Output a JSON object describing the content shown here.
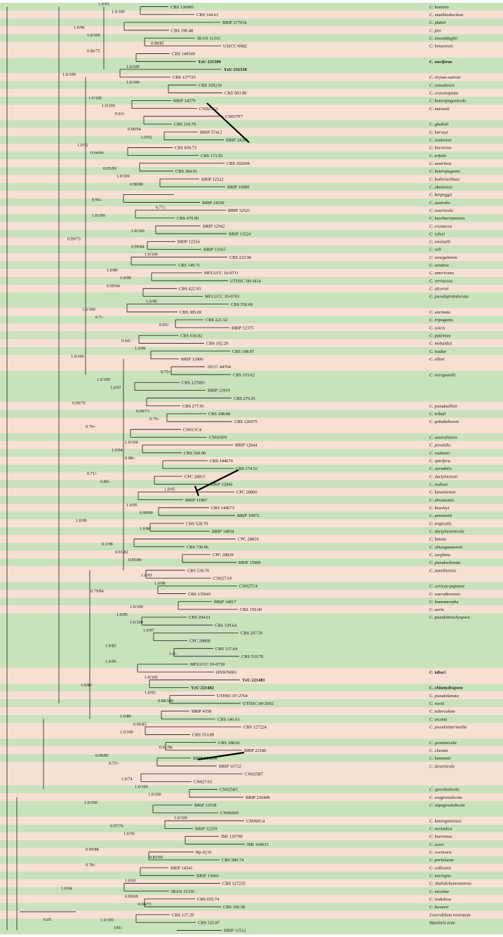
{
  "tree": {
    "scale_label": "0.05",
    "taxa": [
      {
        "strain": "CBS 136985",
        "species": "C. hominis"
      },
      {
        "strain": "CBS 144.63",
        "species": "C. muehlenbeckiae"
      },
      {
        "strain": "BRIP 27703b",
        "species": "C. platzii"
      },
      {
        "strain": "CBS 190.48",
        "species": "C. pisi"
      },
      {
        "strain": "IRAN 3131C",
        "species": "C. mosaddeghii"
      },
      {
        "strain": "USJCC-0082",
        "species": "C. lonarensis"
      },
      {
        "strain": "CBS 140569",
        "species": ""
      },
      {
        "strain": "YzU 231509",
        "species": "C. nuciferae",
        "bold": true
      },
      {
        "strain": "YzU 231510",
        "species": "",
        "bold": true
      },
      {
        "strain": "CBS 127725",
        "species": "C. oryzae-sativae"
      },
      {
        "strain": "CBS 109239",
        "species": "C. canadensis"
      },
      {
        "strain": "CBS 503.90",
        "species": "C. crassiseptata"
      },
      {
        "strain": "BRIP 14579",
        "species": "C. heteropogonicola"
      },
      {
        "strain": "CN021G3",
        "species": "C. marasiti"
      },
      {
        "strain": "CN037F7",
        "species": ""
      },
      {
        "strain": "CBS 210.79",
        "species": "C. gladioli"
      },
      {
        "strain": "BRIP 57412",
        "species": "C. harveyi"
      },
      {
        "strain": "BRIP 24261",
        "species": "C. coatesiae"
      },
      {
        "strain": "CBS 859.73",
        "species": "C. borreriae"
      },
      {
        "strain": "CBS 173.55",
        "species": "C. trifolii"
      },
      {
        "strain": "CBS 102694",
        "species": "C. austriaca"
      },
      {
        "strain": "CBS 284.91",
        "species": "C. heteropogonis"
      },
      {
        "strain": "BRIP 12522",
        "species": "C. bothriochloae"
      },
      {
        "strain": "BRIP 16080",
        "species": "C. akaiiensis"
      },
      {
        "strain": "",
        "species": "C. kenpeggii"
      },
      {
        "strain": "BRIP 14530",
        "species": "C. australis"
      },
      {
        "strain": "BRIP 12521",
        "species": "C. ovariicola"
      },
      {
        "strain": "CBS 470.90",
        "species": "C. beerburrumensis"
      },
      {
        "strain": "BRIP 12942",
        "species": "C. crustacea"
      },
      {
        "strain": "BRIP 13524",
        "species": "C. ryleyi"
      },
      {
        "strain": "BRIP 12554",
        "species": "C. ravenelii"
      },
      {
        "strain": "BRIP 13165",
        "species": "C. soli"
      },
      {
        "strain": "CBS 222.96",
        "species": "C. senegalensis"
      },
      {
        "strain": "CBS 149.71",
        "species": "C. asiatica"
      },
      {
        "strain": "MFLUCC 10-0711",
        "species": "C. americana"
      },
      {
        "strain": "UTHSC 08-3414",
        "species": "C. verrucosa"
      },
      {
        "strain": "CBS 422.93",
        "species": "C. alcornii"
      },
      {
        "strain": "MFLUCC 10-0703",
        "species": "C. pseudoprotuberata"
      },
      {
        "strain": "CBS 550.69",
        "species": ""
      },
      {
        "strain": "CBS 385.69",
        "species": "C. uncinata"
      },
      {
        "strain": "CBS 221.52",
        "species": "C. tripogonis"
      },
      {
        "strain": "BRIP 12375",
        "species": "C. coicis"
      },
      {
        "strain": "CBS 630.82",
        "species": "C. pateneae"
      },
      {
        "strain": "CBS 192.29",
        "species": "C. mebaldsii"
      },
      {
        "strain": "CBS 198.87",
        "species": "C. tsudae"
      },
      {
        "strain": "BRIP 12900",
        "species": "C. ellisii"
      },
      {
        "strain": "ATCC 44764",
        "species": ""
      },
      {
        "strain": "CBS 193.62",
        "species": "C. neergaardii"
      },
      {
        "strain": "CBS 127083",
        "species": ""
      },
      {
        "strain": "BRIP 12919",
        "species": ""
      },
      {
        "strain": "CBS 276.91",
        "species": ""
      },
      {
        "strain": "CBS 277.91",
        "species": "C. pseudoellisii"
      },
      {
        "strain": "CBS 298.80",
        "species": "C. tribuli"
      },
      {
        "strain": "CBS 126975",
        "species": "C. gobabebensis"
      },
      {
        "strain": "CN013C4",
        "species": ""
      },
      {
        "strain": "CN010F9",
        "species": "C. australiensis"
      },
      {
        "strain": "BRIP 12044",
        "species": "C. perotidis"
      },
      {
        "strain": "CBS 350.90",
        "species": "C. rouhanii"
      },
      {
        "strain": "CBS 144674",
        "species": "C. spicifera"
      },
      {
        "strain": "CBS 274.52",
        "species": "C. variabilis"
      },
      {
        "strain": "CPC 28815",
        "species": "C. dactyloctenii"
      },
      {
        "strain": "BRIP 12846",
        "species": "C. nodosa"
      },
      {
        "strain": "CPC 28800",
        "species": "C. hawaiiensis"
      },
      {
        "strain": "BRIP 11987",
        "species": "C. ahvazensis"
      },
      {
        "strain": "CBS 144673",
        "species": "C. beasleyi"
      },
      {
        "strain": "BRIP 10972",
        "species": "C. pennisetii"
      },
      {
        "strain": "CBS 528.70",
        "species": "C. tropicalis"
      },
      {
        "strain": "BRIP 14834",
        "species": "C. dactyloctenicola"
      },
      {
        "strain": "CPC 28810",
        "species": "C. lunata"
      },
      {
        "strain": "CBS 730.96",
        "species": "C. chiangmaiensis"
      },
      {
        "strain": "CPC 28829",
        "species": "C. sorghina"
      },
      {
        "strain": "BRIP 15900",
        "species": "C. pseudoclavata"
      },
      {
        "strain": "CBS 539.70",
        "species": "C. namibiensis"
      },
      {
        "strain": "CN027A9",
        "species": ""
      },
      {
        "strain": "CN027C4",
        "species": "C. caricae-papayae"
      },
      {
        "strain": "CBS 135941",
        "species": "C. warraberensis"
      },
      {
        "strain": "BRIP 14817",
        "species": "C. homomorpha"
      },
      {
        "strain": "CBS 156.60",
        "species": "C. aeria"
      },
      {
        "strain": "CBS 294.61",
        "species": "C. pseudobrachyspora"
      },
      {
        "strain": "CBS 339.64",
        "species": ""
      },
      {
        "strain": "CBS 207.59",
        "species": ""
      },
      {
        "strain": "CPC 28808",
        "species": ""
      },
      {
        "strain": "CBS 337.64",
        "species": ""
      },
      {
        "strain": "CBS 533.70",
        "species": ""
      },
      {
        "strain": "MFLUCC 10-0739",
        "species": ""
      },
      {
        "strain": "HNWN001",
        "species": "C. tabaci",
        "boldSpecies": true
      },
      {
        "strain": "YzU 221481",
        "species": "",
        "bold": true
      },
      {
        "strain": "YzU 221482",
        "species": "C. chlamydospora",
        "bold": true
      },
      {
        "strain": "UTHSC 07-2764",
        "species": "C. pseudolunata"
      },
      {
        "strain": "UTHSC 09-2092",
        "species": "C. reesii"
      },
      {
        "strain": "BRIP 4358",
        "species": "C. tuberculata"
      },
      {
        "strain": "CBS 146.63",
        "species": "C. arcana"
      },
      {
        "strain": "CBS 127224",
        "species": "C. pseudointermedia"
      },
      {
        "strain": "CBS 553.89",
        "species": ""
      },
      {
        "strain": "CBS 188.61",
        "species": "C. graminicola"
      },
      {
        "strain": "BRIP 23186",
        "species": "C. clavata"
      },
      {
        "strain": "BRIP 61680b",
        "species": "C. bannonii"
      },
      {
        "strain": "BRIP 16732",
        "species": "C. deserticola"
      },
      {
        "strain": "CN025B7",
        "species": ""
      },
      {
        "strain": "CN027A5",
        "species": ""
      },
      {
        "strain": "CN025B5",
        "species": "C. sporobolicola"
      },
      {
        "strain": "BRIP 23040b",
        "species": "C. eragrostidicola"
      },
      {
        "strain": "BRIP 12538",
        "species": "C. stipagrostidicola"
      },
      {
        "strain": "CN060H5",
        "species": ""
      },
      {
        "strain": "CN060G4",
        "species": "C. lamingtonensis"
      },
      {
        "strain": "BRIP 12259",
        "species": "C. neoindica"
      },
      {
        "strain": "IMI 129790",
        "species": "C. boeremae"
      },
      {
        "strain": "IMI 164633",
        "species": "C. zeavi"
      },
      {
        "strain": "Bp-Zj 01",
        "species": "C. coctivora"
      },
      {
        "strain": "CBS 580.74",
        "species": "C. portulacae"
      },
      {
        "strain": "BRIP 14541",
        "species": "C. colbranii"
      },
      {
        "strain": "BRIP 13066",
        "species": "C. micropus"
      },
      {
        "strain": "CBS 127235",
        "species": "C. shahidchamranensis"
      },
      {
        "strain": "IRAN 3133C",
        "species": "C. nicotiae"
      },
      {
        "strain": "CBS 655.74",
        "species": "C. nodulosa"
      },
      {
        "strain": "CBS 160.58",
        "species": "C. kusanoi"
      },
      {
        "strain": "CBS 137.29",
        "species": "Exserohilum rostratum"
      },
      {
        "strain": "CBS 325.87",
        "species": "Bipolaris zeae"
      },
      {
        "strain": "BRIP 11512",
        "species": ""
      }
    ],
    "supports": [
      "1.0/93",
      "1.0/100",
      "1.0/96",
      "1.0/100",
      "0.98/85",
      "0.86/75",
      "1.0/100",
      "1.0/100",
      "1.0/100",
      "1.0/100",
      "1.0/100",
      "0.63/-",
      "0.99/94",
      "1.0/92",
      "1.0/92",
      "0.64/66",
      "0.95/90",
      "1.0/100",
      "0.98/88",
      "0.94/-",
      "0.77/-",
      "1.0/100",
      "1.0/100",
      "0.99/73",
      "0.99/84",
      "1.0/100",
      "1.0/80",
      "1.0/99",
      "0.99/94",
      "1.0/90",
      "1.0/100",
      "0.7/-",
      "0.93/-",
      "0.64/-",
      "1.0/96",
      "1.0/100",
      "0.75/-",
      "1.0/100",
      "1.0/97",
      "0.99/79",
      "0.69/73",
      "0.79/-",
      "0.76/-",
      "1.0/100",
      "1.0/94",
      "0.98/-",
      "0.71/-",
      "0.89/-",
      "1.0/95",
      "1.0/95",
      "0.99/99",
      "1.0/90",
      "1.0/88",
      "0.1/98",
      "0.91/82",
      "0.85/86",
      "1.0/93",
      "1.0/98",
      "0.79/84",
      "1.0/100",
      "1.0/95",
      "1.0/100",
      "1.0/97",
      "1.0/83",
      "1.0/-",
      "1.0/95",
      "1.0/100",
      "1.0/86",
      "1.0/93",
      "0.88/100",
      "1.0/80",
      "0.96/83",
      "1.0/100",
      "0.91/98",
      "0.99/85",
      "0.72/-",
      "1.0/74",
      "1.0/100",
      "1.0/100",
      "1.0/100",
      "1.0/100",
      "0.97/76",
      "1.0/59",
      "0.99/88",
      "0.82/69",
      "0.78/-",
      "1.0/93",
      "1.0/94",
      "0.99/69",
      "0.94/73",
      "1.0/100",
      "100/-"
    ]
  }
}
